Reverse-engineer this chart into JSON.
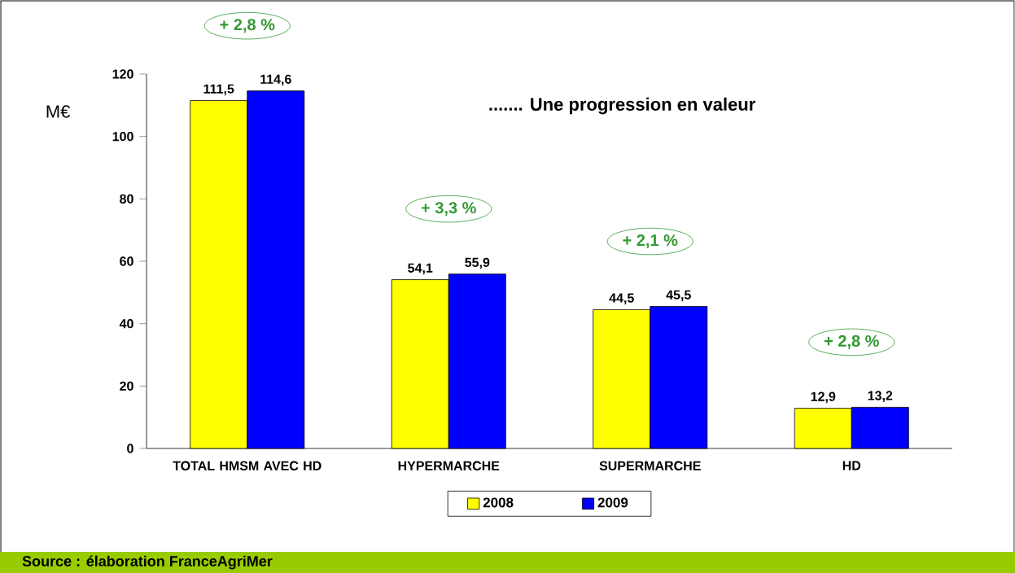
{
  "chart_data": {
    "type": "bar",
    "title": "....... Une progression en valeur",
    "ylabel": "M€",
    "categories": [
      "TOTAL HMSM AVEC HD",
      "HYPERMARCHE",
      "SUPERMARCHE",
      "HD"
    ],
    "series": [
      {
        "name": "2008",
        "color": "#ffff00",
        "values": [
          111.5,
          54.1,
          44.5,
          12.9
        ],
        "value_labels": [
          "111,5",
          "54,1",
          "44,5",
          "12,9"
        ]
      },
      {
        "name": "2009",
        "color": "#0000ff",
        "values": [
          114.6,
          55.9,
          45.5,
          13.2
        ],
        "value_labels": [
          "114,6",
          "55,9",
          "45,5",
          "13,2"
        ]
      }
    ],
    "ylim": [
      0,
      120
    ],
    "yticks": [
      0,
      20,
      40,
      60,
      80,
      100,
      120
    ],
    "legend": "bottom",
    "annotations": [
      "+ 2,8 %",
      "+ 3,3 %",
      "+ 2,1 %",
      "+ 2,8 %",
      "Source : élaboration FranceAgriMer"
    ]
  }
}
